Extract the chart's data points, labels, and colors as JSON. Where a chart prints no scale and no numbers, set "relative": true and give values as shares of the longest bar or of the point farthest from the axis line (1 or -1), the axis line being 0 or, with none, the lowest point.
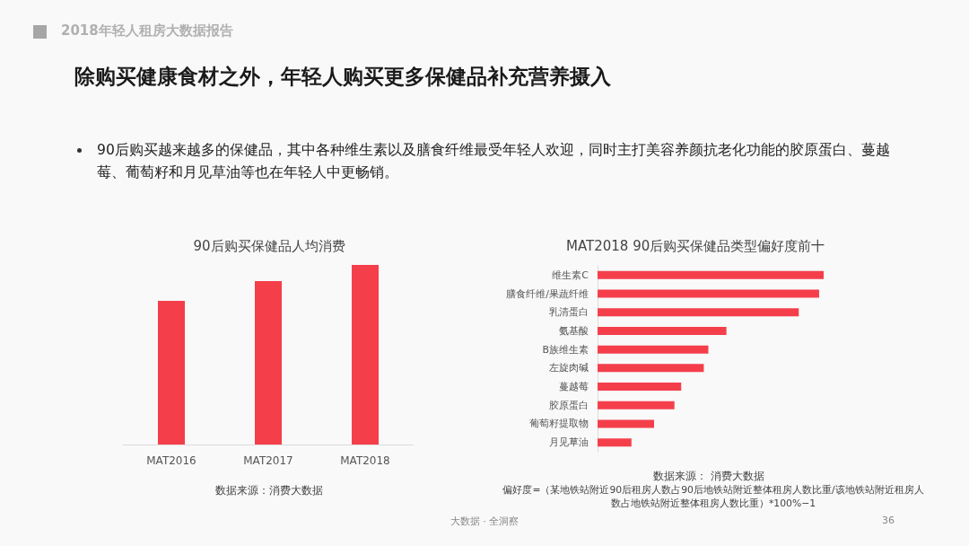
{
  "chart_data": [
    {
      "type": "bar",
      "title": "90后购买保健品人均消费",
      "categories": [
        "MAT2016",
        "MAT2017",
        "MAT2018"
      ],
      "values": [
        0.8,
        0.91,
        1
      ],
      "color": "#f43f4b",
      "relative": true,
      "annotations": [
        "2018年轻人租房大数据报告",
        "除购买健康食材之外，年轻人购买更多保健品补充营养摄入",
        "90后购买越来越多的保健品，其中各种维生素以及膳食纤维最受年轻人欢迎，同时主打美容养颜抗老化功能的胶原蛋白、蔓越莓、葡萄籽和月见草油等也在年轻人中更畅销。",
        "数据来源：消费大数据",
        "大数据 · 全洞察",
        "36"
      ]
    },
    {
      "type": "bar",
      "orientation": "horizontal",
      "title": "MAT2018 90后购买保健品类型偏好度前十",
      "categories": [
        "维生素C",
        "膳食纤维/果蔬纤维",
        "乳清蛋白",
        "氨基酸",
        "B族维生素",
        "左旋肉碱",
        "蔓越莓",
        "胶原蛋白",
        "葡萄籽提取物",
        "月见草油"
      ],
      "values": [
        1,
        0.98,
        0.89,
        0.57,
        0.49,
        0.47,
        0.37,
        0.34,
        0.25,
        0.15
      ],
      "color": "#f43f4b",
      "relative": true,
      "annotations": [
        "数据来源： 消费大数据",
        "偏好度=（某地铁站附近90后租房人数占90后地铁站附近整体租房人数比重/该地铁站附近租房人数占地铁站附近整体租房人数比重）*100%−1"
      ]
    }
  ]
}
